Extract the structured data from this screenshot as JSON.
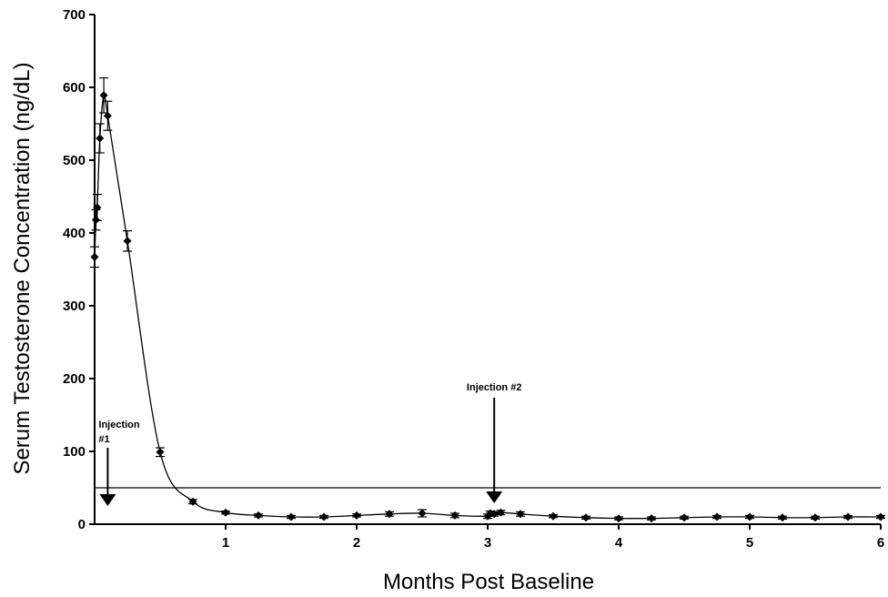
{
  "chart_data": {
    "type": "line",
    "xlabel": "Months Post Baseline",
    "ylabel": "Serum Testosterone Concentration (ng/dL)",
    "xlim": [
      0,
      6
    ],
    "ylim": [
      0,
      700
    ],
    "xticks": [
      1,
      2,
      3,
      4,
      5,
      6
    ],
    "yticks": [
      0,
      100,
      200,
      300,
      400,
      500,
      600,
      700
    ],
    "reference_line_y": 50,
    "grid": false,
    "series": [
      {
        "x": [
          0.0,
          0.01,
          0.02,
          0.04,
          0.07,
          0.1,
          0.25,
          0.5,
          0.75,
          1.0,
          1.25,
          1.5,
          1.75,
          2.0,
          2.25,
          2.5,
          2.75,
          3.0,
          3.02,
          3.05,
          3.1,
          3.25,
          3.5,
          3.75,
          4.0,
          4.25,
          4.5,
          4.75,
          5.0,
          5.25,
          5.5,
          5.75,
          6.0
        ],
        "y": [
          367,
          418,
          435,
          530,
          589,
          561,
          389,
          99,
          31,
          16,
          12,
          10,
          10,
          12,
          14,
          15,
          12,
          11,
          15,
          14,
          16,
          14,
          11,
          9,
          8,
          8,
          9,
          10,
          10,
          9,
          9,
          10,
          10
        ],
        "err": [
          14,
          14,
          18,
          20,
          24,
          20,
          14,
          6,
          3,
          2,
          2,
          2,
          2,
          2,
          3,
          5,
          3,
          3,
          3,
          3,
          3,
          3,
          2,
          2,
          2,
          2,
          2,
          2,
          2,
          2,
          2,
          2,
          2
        ]
      }
    ],
    "annotations": [
      {
        "label_lines": [
          "Injection",
          "#1"
        ],
        "x": 0.1
      },
      {
        "label_lines": [
          "Injection #2"
        ],
        "x": 3.05
      }
    ]
  }
}
